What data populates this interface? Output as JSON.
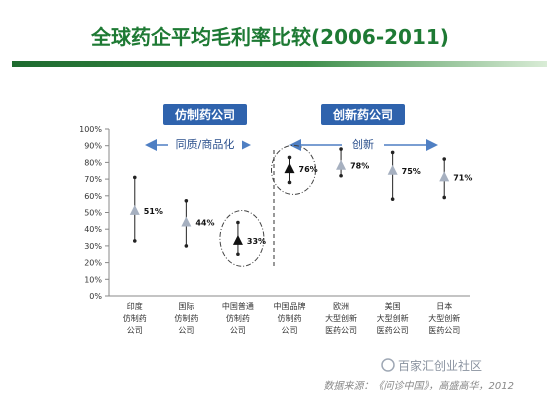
{
  "slide": {
    "title": "全球药企平均毛利率比较(2006-2011)",
    "source": "数据来源：《问诊中国》，高盛高华，2012",
    "watermark": "百家汇创业社区",
    "colors": {
      "title": "#1e7a34",
      "band_dark": "#1e6b2f",
      "band_light": "#c7e3c5",
      "group_box": "#2f63ad",
      "arrow": "#4f7fc3",
      "arrow_label": "#2a4f8c",
      "triangle_grey": "#a6b0c0",
      "triangle_dark": "#111111",
      "source_text": "#888888"
    }
  },
  "groups": [
    {
      "label": "仿制药公司",
      "arrow_label": "同质/商品化"
    },
    {
      "label": "创新药公司",
      "arrow_label": "创新"
    }
  ],
  "chart_data": {
    "type": "range",
    "title": "",
    "xlabel": "",
    "ylabel": "",
    "ylim": [
      0,
      100
    ],
    "yticks": [
      "0%",
      "10%",
      "20%",
      "30%",
      "40%",
      "50%",
      "60%",
      "70%",
      "80%",
      "90%",
      "100%"
    ],
    "grid": false,
    "categories": [
      [
        "印度",
        "仿制药",
        "公司"
      ],
      [
        "国际",
        "仿制药",
        "公司"
      ],
      [
        "中国普通",
        "仿制药",
        "公司"
      ],
      [
        "中国品牌",
        "仿制药",
        "公司"
      ],
      [
        "欧洲",
        "大型创新",
        "医药公司"
      ],
      [
        "美国",
        "大型创新",
        "医药公司"
      ],
      [
        "日本",
        "大型创新",
        "医药公司"
      ]
    ],
    "series": [
      {
        "values": [
          51,
          44,
          33,
          76,
          78,
          75,
          71
        ],
        "value_labels": [
          "51%",
          "44%",
          "33%",
          "76%",
          "78%",
          "75%",
          "71%"
        ],
        "low": [
          33,
          30,
          25,
          68,
          72,
          58,
          59
        ],
        "high": [
          71,
          57,
          44,
          83,
          88,
          86,
          82
        ],
        "highlighted": [
          false,
          false,
          true,
          true,
          false,
          false,
          false
        ]
      }
    ]
  }
}
